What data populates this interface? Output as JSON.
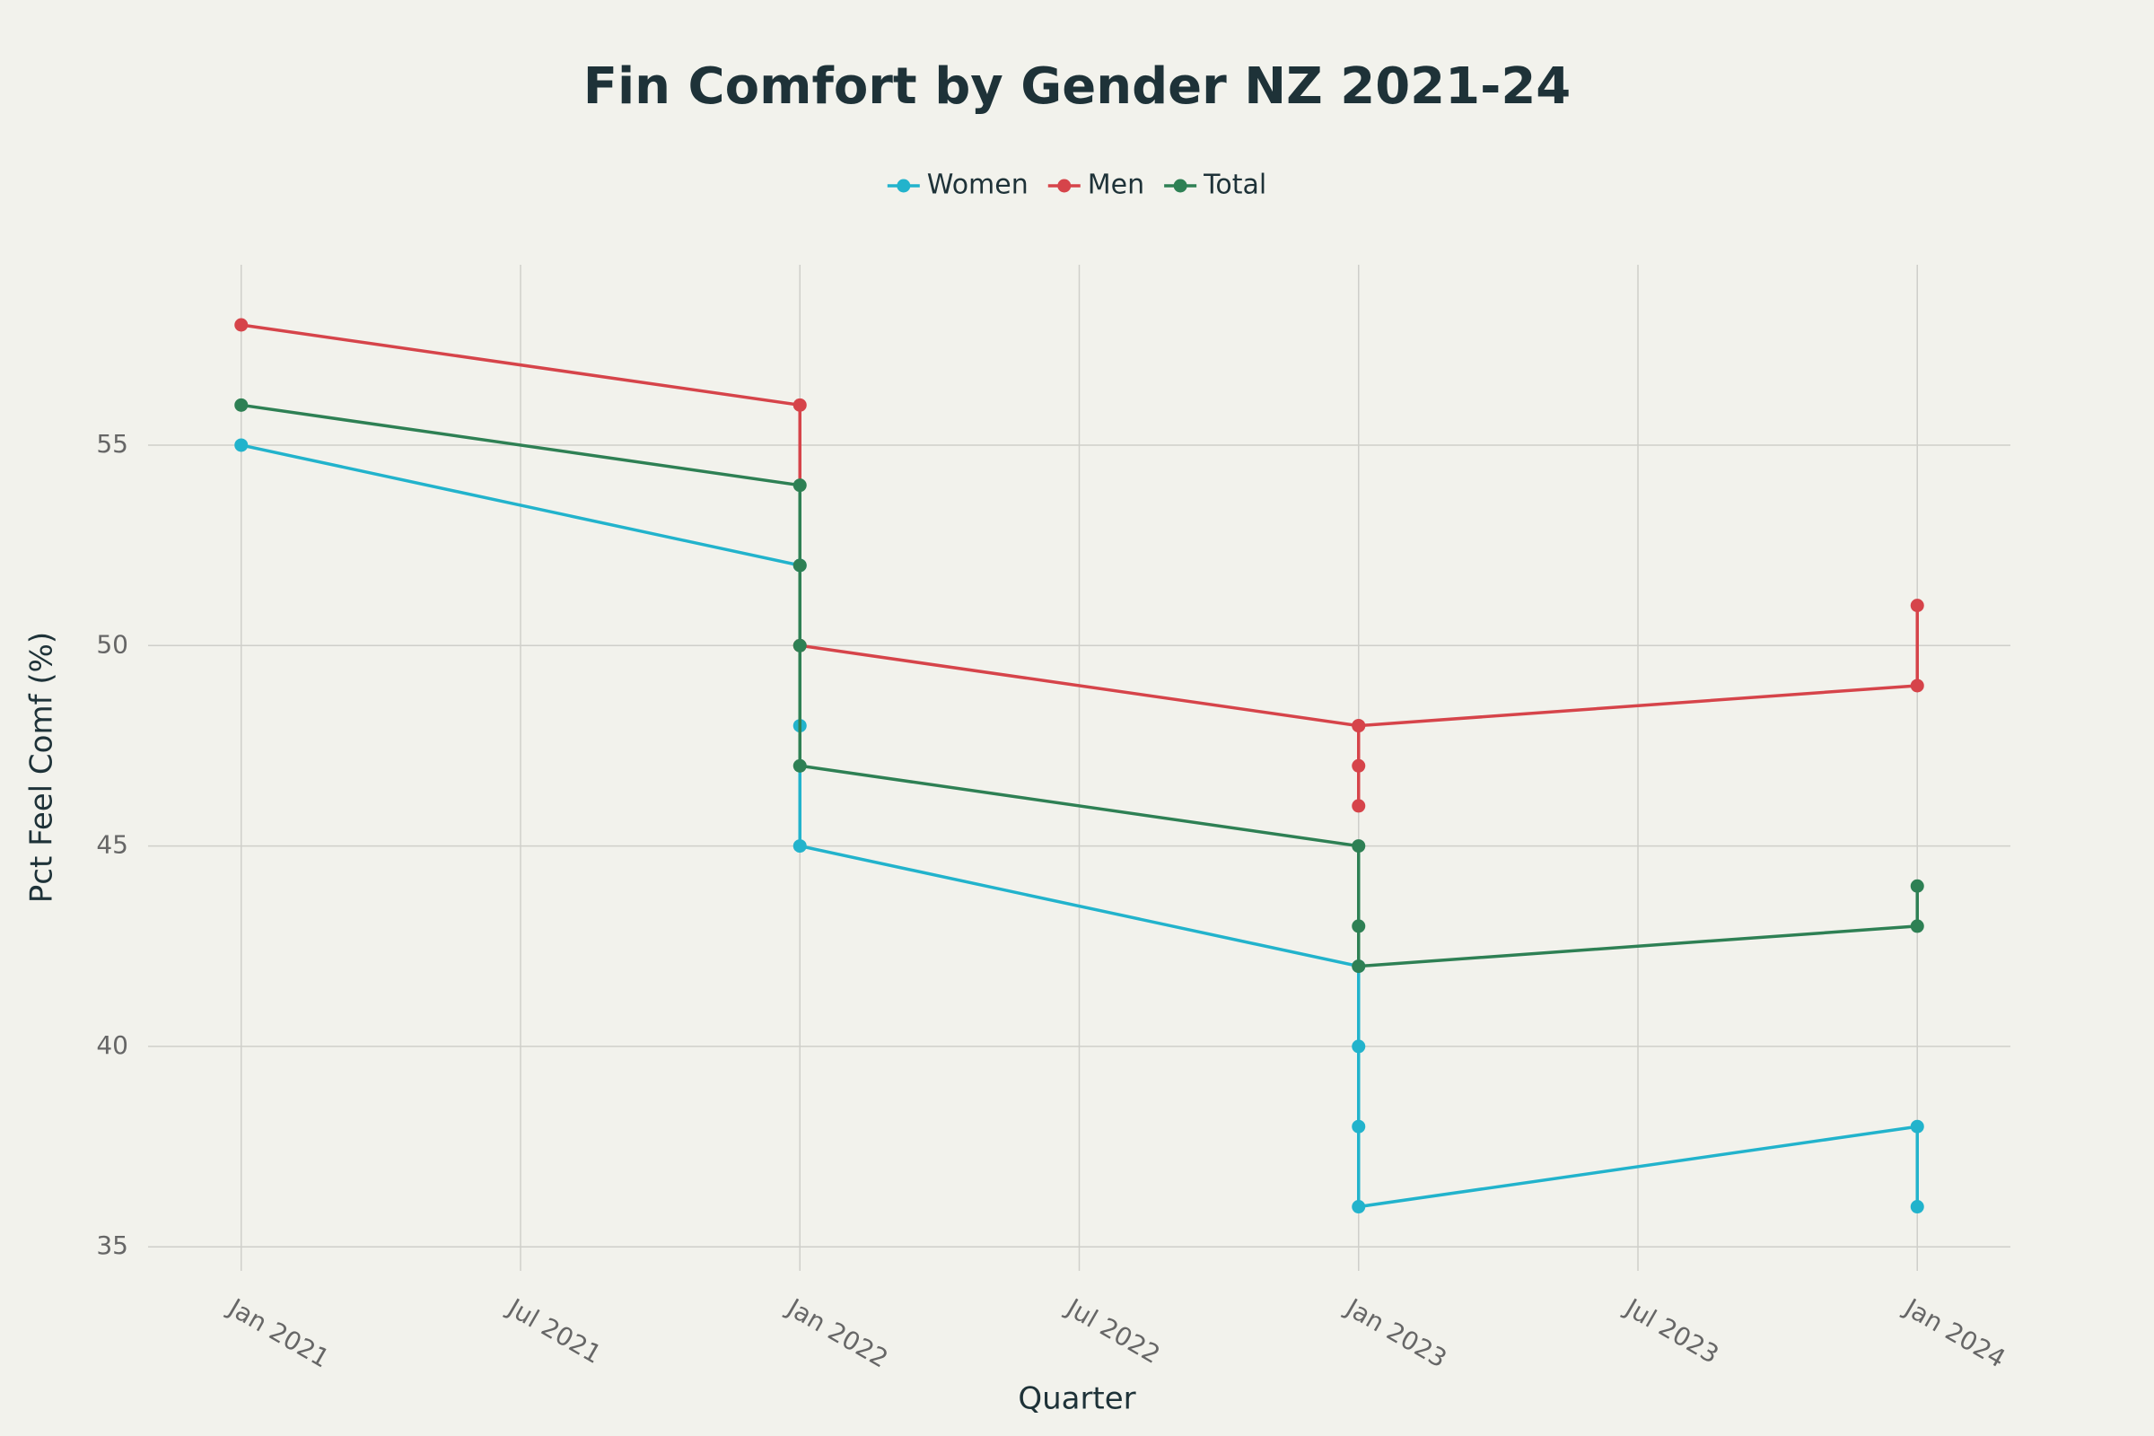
{
  "chart_data": {
    "type": "line",
    "title": "Fin Comfort by Gender NZ 2021-24",
    "x_label": "Quarter",
    "y_label": "Pct Feel Comf (%)",
    "series": [
      {
        "name": "Women",
        "color": "#22b3cc",
        "x": [
          "2021-01",
          "2022-01",
          "2022-01",
          "2022-01",
          "2023-01",
          "2023-01",
          "2023-01",
          "2023-01",
          "2024-01",
          "2024-01"
        ],
        "values": [
          55,
          52,
          48,
          45,
          42,
          40,
          38,
          36,
          38,
          36
        ]
      },
      {
        "name": "Men",
        "color": "#d6444a",
        "x": [
          "2021-01",
          "2022-01",
          "2022-01",
          "2023-01",
          "2023-01",
          "2023-01",
          "2023-01",
          "2024-01",
          "2024-01"
        ],
        "values": [
          58,
          56,
          50,
          48,
          47,
          46,
          48,
          49,
          51
        ]
      },
      {
        "name": "Total",
        "color": "#2e8054",
        "x": [
          "2021-01",
          "2022-01",
          "2022-01",
          "2022-01",
          "2022-01",
          "2023-01",
          "2023-01",
          "2023-01",
          "2024-01",
          "2024-01"
        ],
        "values": [
          56,
          54,
          52,
          50,
          47,
          45,
          43,
          42,
          43,
          44
        ]
      }
    ],
    "xlim": [
      "2020-11",
      "2024-03"
    ],
    "xticks": [
      {
        "value": "2021-01",
        "label": "Jan 2021"
      },
      {
        "value": "2021-07",
        "label": "Jul 2021"
      },
      {
        "value": "2022-01",
        "label": "Jan 2022"
      },
      {
        "value": "2022-07",
        "label": "Jul 2022"
      },
      {
        "value": "2023-01",
        "label": "Jan 2023"
      },
      {
        "value": "2023-07",
        "label": "Jul 2023"
      },
      {
        "value": "2024-01",
        "label": "Jan 2024"
      }
    ],
    "ylim": [
      34.4,
      59.5
    ],
    "yticks": [
      35,
      40,
      45,
      50,
      55
    ],
    "grid": true,
    "legend": "top"
  }
}
